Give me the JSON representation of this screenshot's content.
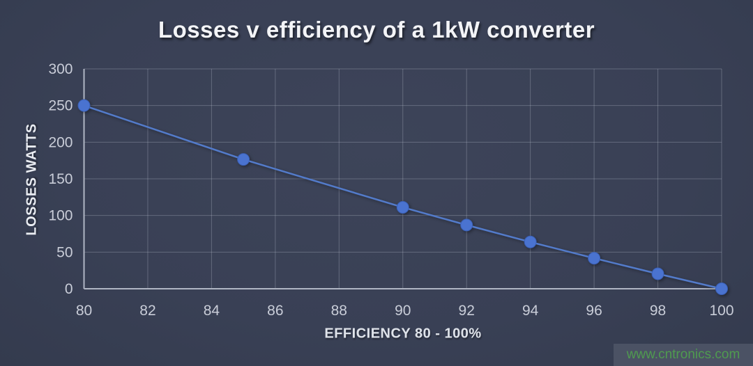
{
  "chart_data": {
    "type": "line",
    "title": "Losses v efficiency of a 1kW converter",
    "xlabel": "EFFICIENCY 80 - 100%",
    "ylabel": "LOSSES WATTS",
    "x": [
      80,
      85,
      90,
      92,
      94,
      96,
      98,
      100
    ],
    "y": [
      250,
      176.5,
      111.1,
      87,
      63.8,
      41.7,
      20.4,
      0
    ],
    "xlim": [
      80,
      100
    ],
    "ylim": [
      0,
      300
    ],
    "x_ticks": [
      80,
      82,
      84,
      86,
      88,
      90,
      92,
      94,
      96,
      98,
      100
    ],
    "y_ticks": [
      0,
      50,
      100,
      150,
      200,
      250,
      300
    ],
    "grid": true,
    "legend": false,
    "line_color": "#537bca",
    "marker_color": "#4a73d0",
    "marker_edge_color": "#3a5fb4",
    "grid_color": "rgba(196,202,216,0.30)",
    "axis_color": "#b0b6c4",
    "background_color": "#394055",
    "tick_label_color": "#c9cdd8"
  },
  "watermark": {
    "text": "www.cntronics.com",
    "text_color": "#4f9b4f",
    "box_color": "#4b5264"
  }
}
